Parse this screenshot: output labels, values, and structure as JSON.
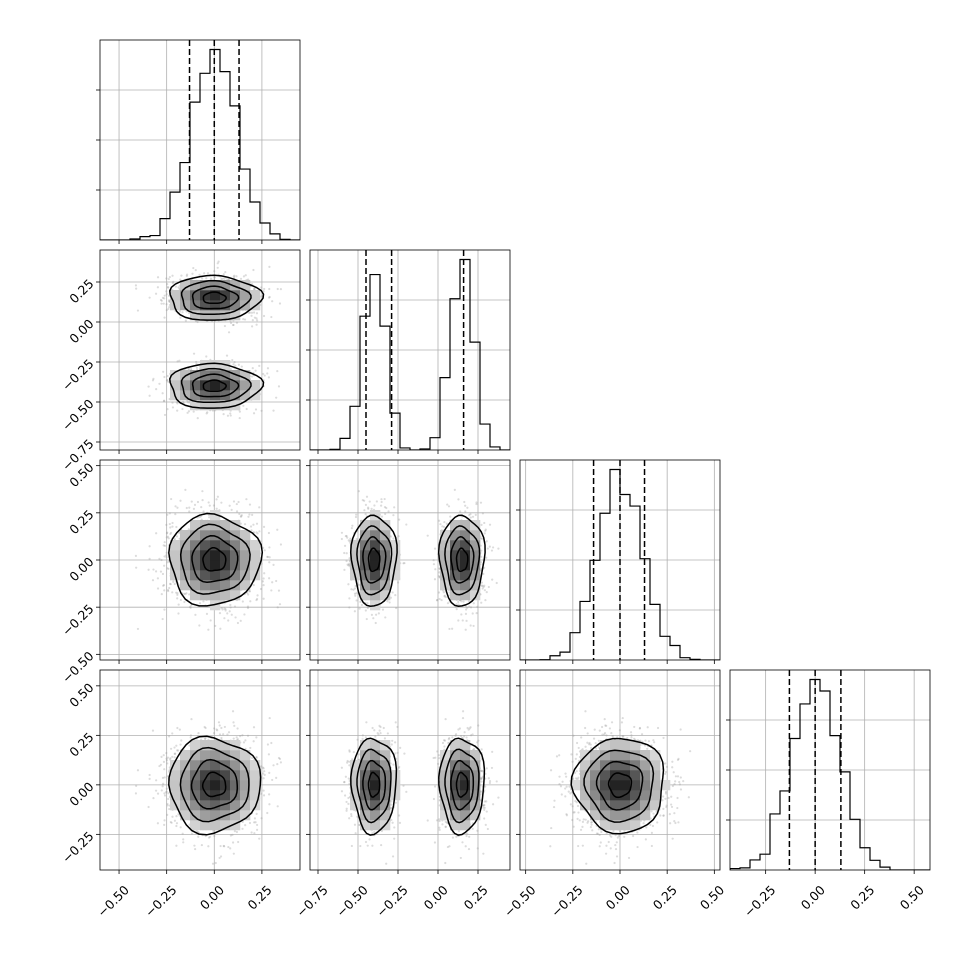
{
  "chart_data": {
    "type": "corner",
    "dimensions": 4,
    "grid": true,
    "quantiles": [
      0.16,
      0.5,
      0.84
    ],
    "parameters": [
      {
        "range": [
          -0.6,
          0.45
        ],
        "mean": 0.0,
        "sd": 0.12,
        "quantile_values": [
          -0.13,
          0.0,
          0.13
        ],
        "ticks": [
          -0.5,
          -0.25,
          0.0,
          0.25
        ],
        "tick_labels": [
          "−0.50",
          "−0.25",
          "0.00",
          "0.25"
        ]
      },
      {
        "range": [
          -0.8,
          0.45
        ],
        "modes": [
          {
            "mean": -0.4,
            "sd": 0.07,
            "weight": 0.5
          },
          {
            "mean": 0.15,
            "sd": 0.07,
            "weight": 0.5
          }
        ],
        "quantile_values": [
          -0.45,
          -0.29,
          0.16
        ],
        "ticks": [
          -0.75,
          -0.5,
          -0.25,
          0.0,
          0.25
        ],
        "tick_labels": [
          "−0.75",
          "−0.50",
          "−0.25",
          "0.00",
          "0.25"
        ]
      },
      {
        "range": [
          -0.53,
          0.53
        ],
        "mean": 0.0,
        "sd": 0.12,
        "quantile_values": [
          -0.14,
          0.0,
          0.13
        ],
        "ticks": [
          -0.5,
          -0.25,
          0.0,
          0.25,
          0.5
        ],
        "tick_labels": [
          "−0.50",
          "−0.25",
          "0.00",
          "0.25",
          "0.50"
        ]
      },
      {
        "range": [
          -0.43,
          0.58
        ],
        "mean": 0.0,
        "sd": 0.12,
        "quantile_values": [
          -0.13,
          0.0,
          0.13
        ],
        "ticks": [
          -0.25,
          0.0,
          0.25,
          0.5
        ],
        "tick_labels": [
          "−0.25",
          "0.00",
          "0.25",
          "0.50"
        ]
      }
    ],
    "histograms": [
      {
        "param": 0,
        "bin_edges": [
          -0.6,
          -0.45
        ],
        "counts": []
      }
    ],
    "contour_levels_sigma": [
      0.5,
      1.0,
      1.5,
      2.0
    ]
  }
}
